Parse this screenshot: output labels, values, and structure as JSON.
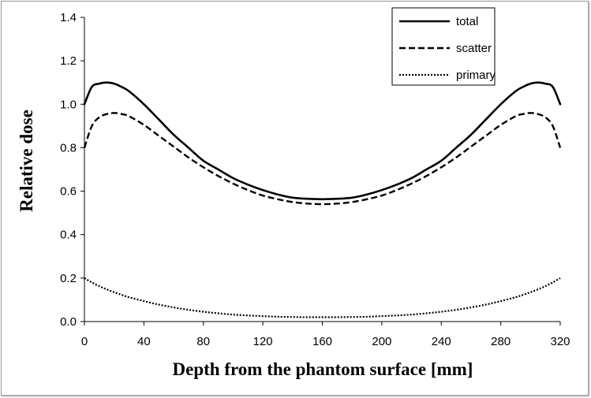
{
  "chart_data": {
    "type": "line",
    "title": "",
    "xlabel": "Depth from the phantom surface [mm]",
    "ylabel": "Relative dose",
    "xlim": [
      0,
      320
    ],
    "ylim": [
      0,
      1.4
    ],
    "x_ticks": [
      "0",
      "40",
      "80",
      "120",
      "160",
      "200",
      "240",
      "280",
      "320"
    ],
    "y_ticks": [
      "0.0",
      "0.2",
      "0.4",
      "0.6",
      "0.8",
      "1.0",
      "1.2",
      "1.4"
    ],
    "grid": false,
    "legend_position": "top-right",
    "x": [
      0,
      5,
      10,
      15,
      20,
      25,
      30,
      40,
      50,
      60,
      70,
      80,
      90,
      100,
      110,
      120,
      130,
      140,
      150,
      160,
      170,
      180,
      190,
      200,
      210,
      220,
      230,
      240,
      250,
      260,
      270,
      280,
      290,
      295,
      300,
      305,
      310,
      315,
      320
    ],
    "series": [
      {
        "name": "total",
        "style": "solid",
        "values": [
          1.0,
          1.08,
          1.095,
          1.1,
          1.095,
          1.08,
          1.06,
          1.0,
          0.93,
          0.86,
          0.8,
          0.74,
          0.7,
          0.66,
          0.63,
          0.605,
          0.585,
          0.57,
          0.565,
          0.563,
          0.565,
          0.57,
          0.585,
          0.605,
          0.63,
          0.66,
          0.7,
          0.74,
          0.8,
          0.86,
          0.93,
          1.0,
          1.06,
          1.08,
          1.095,
          1.1,
          1.095,
          1.08,
          1.0
        ]
      },
      {
        "name": "scatter",
        "style": "dashed",
        "values": [
          0.8,
          0.9,
          0.94,
          0.955,
          0.96,
          0.955,
          0.945,
          0.905,
          0.855,
          0.805,
          0.755,
          0.71,
          0.67,
          0.635,
          0.605,
          0.58,
          0.563,
          0.55,
          0.543,
          0.54,
          0.543,
          0.55,
          0.563,
          0.58,
          0.605,
          0.635,
          0.67,
          0.71,
          0.755,
          0.805,
          0.855,
          0.905,
          0.945,
          0.955,
          0.96,
          0.955,
          0.94,
          0.9,
          0.8
        ]
      },
      {
        "name": "primary",
        "style": "dotted",
        "values": [
          0.2,
          0.18,
          0.163,
          0.148,
          0.135,
          0.123,
          0.112,
          0.094,
          0.078,
          0.065,
          0.054,
          0.045,
          0.038,
          0.032,
          0.028,
          0.025,
          0.022,
          0.021,
          0.02,
          0.02,
          0.02,
          0.021,
          0.022,
          0.025,
          0.028,
          0.032,
          0.038,
          0.045,
          0.054,
          0.065,
          0.078,
          0.094,
          0.112,
          0.123,
          0.135,
          0.148,
          0.163,
          0.18,
          0.2
        ]
      }
    ]
  }
}
